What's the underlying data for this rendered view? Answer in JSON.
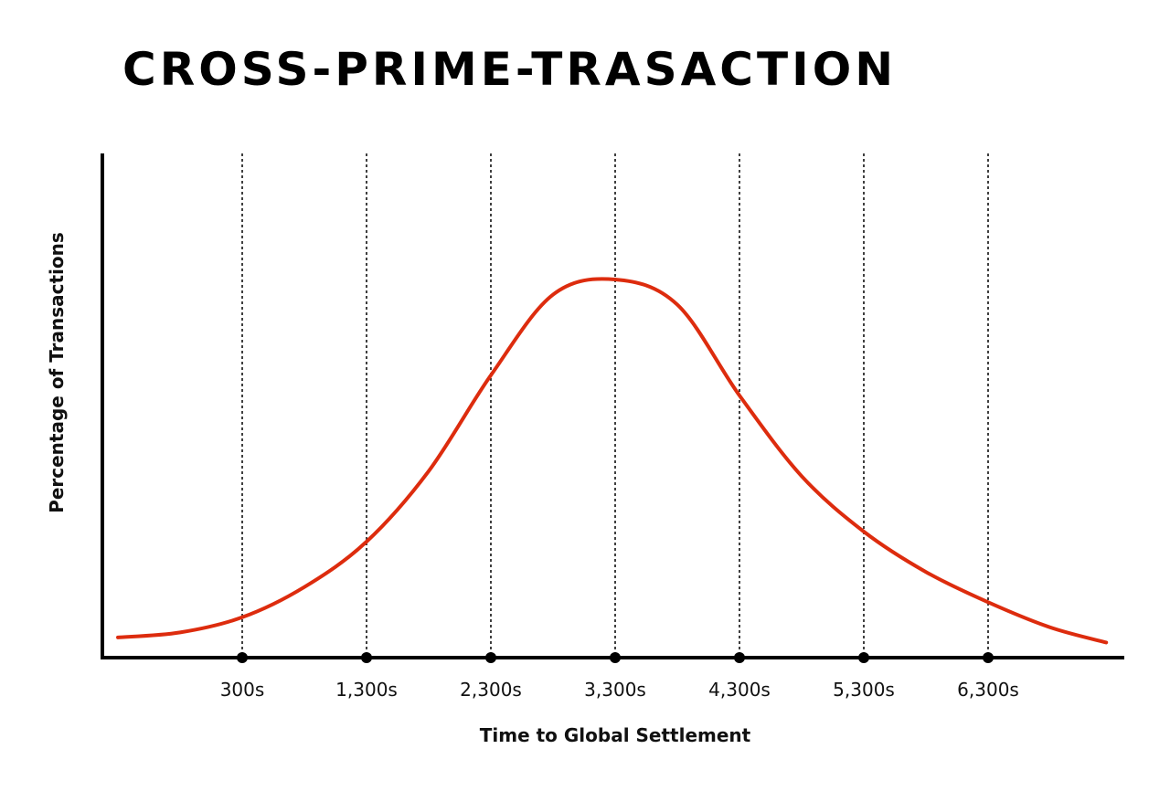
{
  "title": "CROSS-PRIME-TRASACTION",
  "chart_data": {
    "type": "line",
    "title": "CROSS-PRIME-TRASACTION",
    "xlabel": "Time to Global Settlement",
    "ylabel": "Percentage of Transactions",
    "x_ticks": [
      300,
      1300,
      2300,
      3300,
      4300,
      5300,
      6300
    ],
    "x_tick_labels": [
      "300s",
      "1,300s",
      "2,300s",
      "3,300s",
      "4,300s",
      "5,300s",
      "6,300s"
    ],
    "xlim": [
      -700,
      7550
    ],
    "ylim": [
      0,
      100
    ],
    "y_ticks_shown": false,
    "grid": "vertical dashed at x ticks",
    "series": [
      {
        "color": "#dd2c0e",
        "x": [
          -700,
          -200,
          300,
          800,
          1300,
          1800,
          2300,
          2800,
          3300,
          3800,
          4300,
          4800,
          5300,
          5800,
          6300,
          6800,
          7250
        ],
        "y": [
          4,
          5,
          8,
          14,
          23,
          37,
          56,
          72,
          75,
          70,
          52,
          36,
          25,
          17,
          11,
          6,
          3
        ]
      }
    ],
    "line_color": "#dd2c0e",
    "axis_color": "#000000"
  }
}
